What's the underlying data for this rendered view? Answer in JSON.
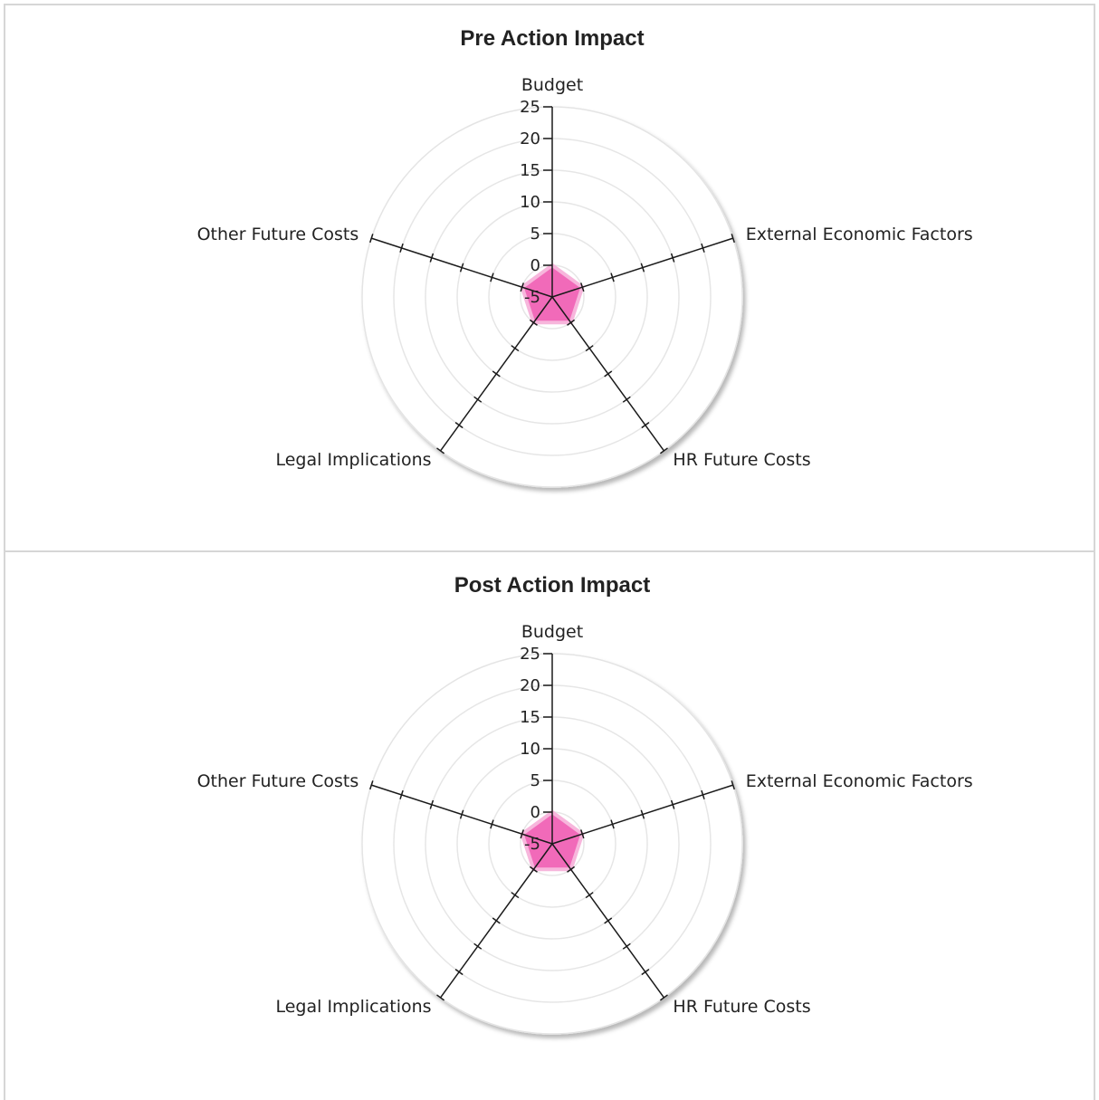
{
  "chart_data": [
    {
      "type": "radar",
      "title": "Pre Action Impact",
      "axes": [
        "Budget",
        "External Economic Factors",
        "HR Future Costs",
        "Legal Implications",
        "Other Future Costs"
      ],
      "ticks": [
        "-5",
        "0",
        "5",
        "10",
        "15",
        "20",
        "25"
      ],
      "rlim": [
        -5,
        25
      ],
      "series": [
        {
          "values": [
            0,
            0,
            0,
            0,
            0
          ],
          "color": "#f05ab1"
        }
      ],
      "grid": true,
      "legend": "none"
    },
    {
      "type": "radar",
      "title": "Post Action Impact",
      "axes": [
        "Budget",
        "External Economic Factors",
        "HR Future Costs",
        "Legal Implications",
        "Other Future Costs"
      ],
      "ticks": [
        "-5",
        "0",
        "5",
        "10",
        "15",
        "20",
        "25"
      ],
      "rlim": [
        -5,
        25
      ],
      "series": [
        {
          "values": [
            0,
            0,
            0,
            0,
            0
          ],
          "color": "#f05ab1"
        }
      ],
      "grid": true,
      "legend": "none"
    }
  ]
}
